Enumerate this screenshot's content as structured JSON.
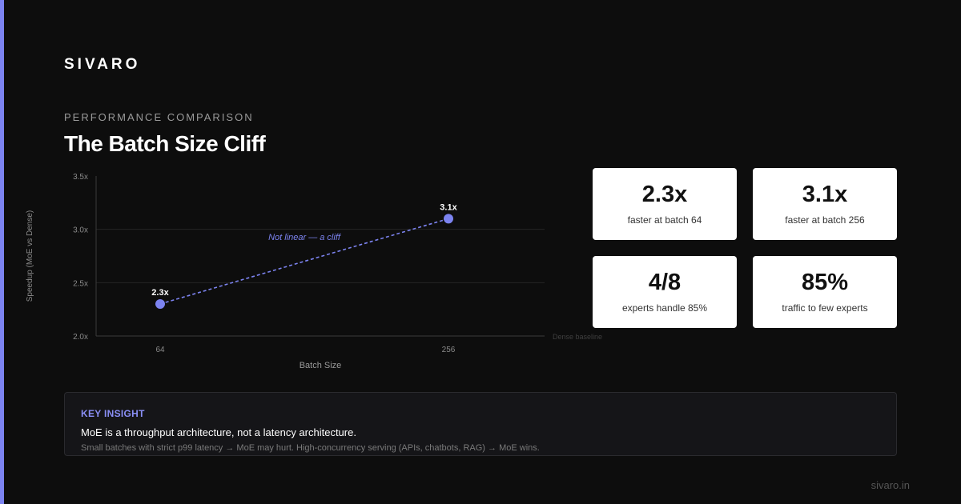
{
  "brand": "SIVARO",
  "eyebrow": "PERFORMANCE COMPARISON",
  "title": "The Batch Size Cliff",
  "colors": {
    "accent": "#7c83f0",
    "background": "#0d0d0d",
    "card": "#ffffff"
  },
  "chart_data": {
    "type": "line",
    "title": "",
    "xlabel": "Batch Size",
    "ylabel": "Speedup (MoE vs Dense)",
    "categories": [
      "64",
      "256"
    ],
    "series": [
      {
        "values": [
          2.3,
          3.1
        ],
        "point_labels": [
          "2.3x",
          "3.1x"
        ],
        "color": "#7c83f0",
        "style": "dashed"
      }
    ],
    "ylim": [
      2.0,
      3.5
    ],
    "yticks": [
      2.0,
      2.5,
      3.0,
      3.5
    ],
    "ytick_labels": [
      "2.0x",
      "2.5x",
      "3.0x",
      "3.5x"
    ],
    "grid": true,
    "annotation": "Not linear — a cliff",
    "baseline_label": "Dense baseline"
  },
  "stats": [
    {
      "value": "2.3x",
      "label": "faster at batch 64"
    },
    {
      "value": "3.1x",
      "label": "faster at batch 256"
    },
    {
      "value": "4/8",
      "label": "experts handle 85%"
    },
    {
      "value": "85%",
      "label": "traffic to few experts"
    }
  ],
  "insight": {
    "label": "KEY INSIGHT",
    "main": "MoE is a throughput architecture, not a latency architecture.",
    "sub": "Small batches with strict p99 latency → MoE may hurt. High-concurrency serving (APIs, chatbots, RAG) → MoE wins."
  },
  "footer": "sivaro.in"
}
